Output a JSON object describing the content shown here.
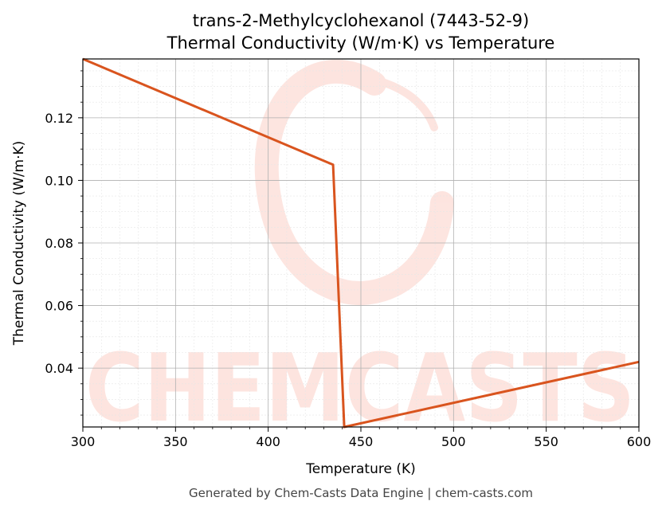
{
  "chart_data": {
    "type": "line",
    "title": "trans-2-Methylcyclohexanol (7443-52-9)",
    "subtitle": "Thermal Conductivity (W/m·K) vs Temperature",
    "xlabel": "Temperature (K)",
    "ylabel": "Thermal Conductivity (W/m·K)",
    "xlim": [
      300,
      600
    ],
    "ylim": [
      0.0212,
      0.1388
    ],
    "xticks": [
      300,
      350,
      400,
      450,
      500,
      550,
      600
    ],
    "yticks": [
      0.04,
      0.06,
      0.08,
      0.1,
      0.12
    ],
    "xtick_labels": [
      "300",
      "350",
      "400",
      "450",
      "500",
      "550",
      "600"
    ],
    "ytick_labels": [
      "0.04",
      "0.06",
      "0.08",
      "0.10",
      "0.12"
    ],
    "grid": true,
    "series": [
      {
        "color": "#d9541e",
        "x": [
          300,
          435,
          441,
          600
        ],
        "y": [
          0.1388,
          0.105,
          0.0212,
          0.042
        ]
      }
    ]
  },
  "watermark": {
    "text": "CHEMCASTS",
    "color": "#fde0da"
  },
  "footer": "Generated by Chem-Casts Data Engine | chem-casts.com"
}
